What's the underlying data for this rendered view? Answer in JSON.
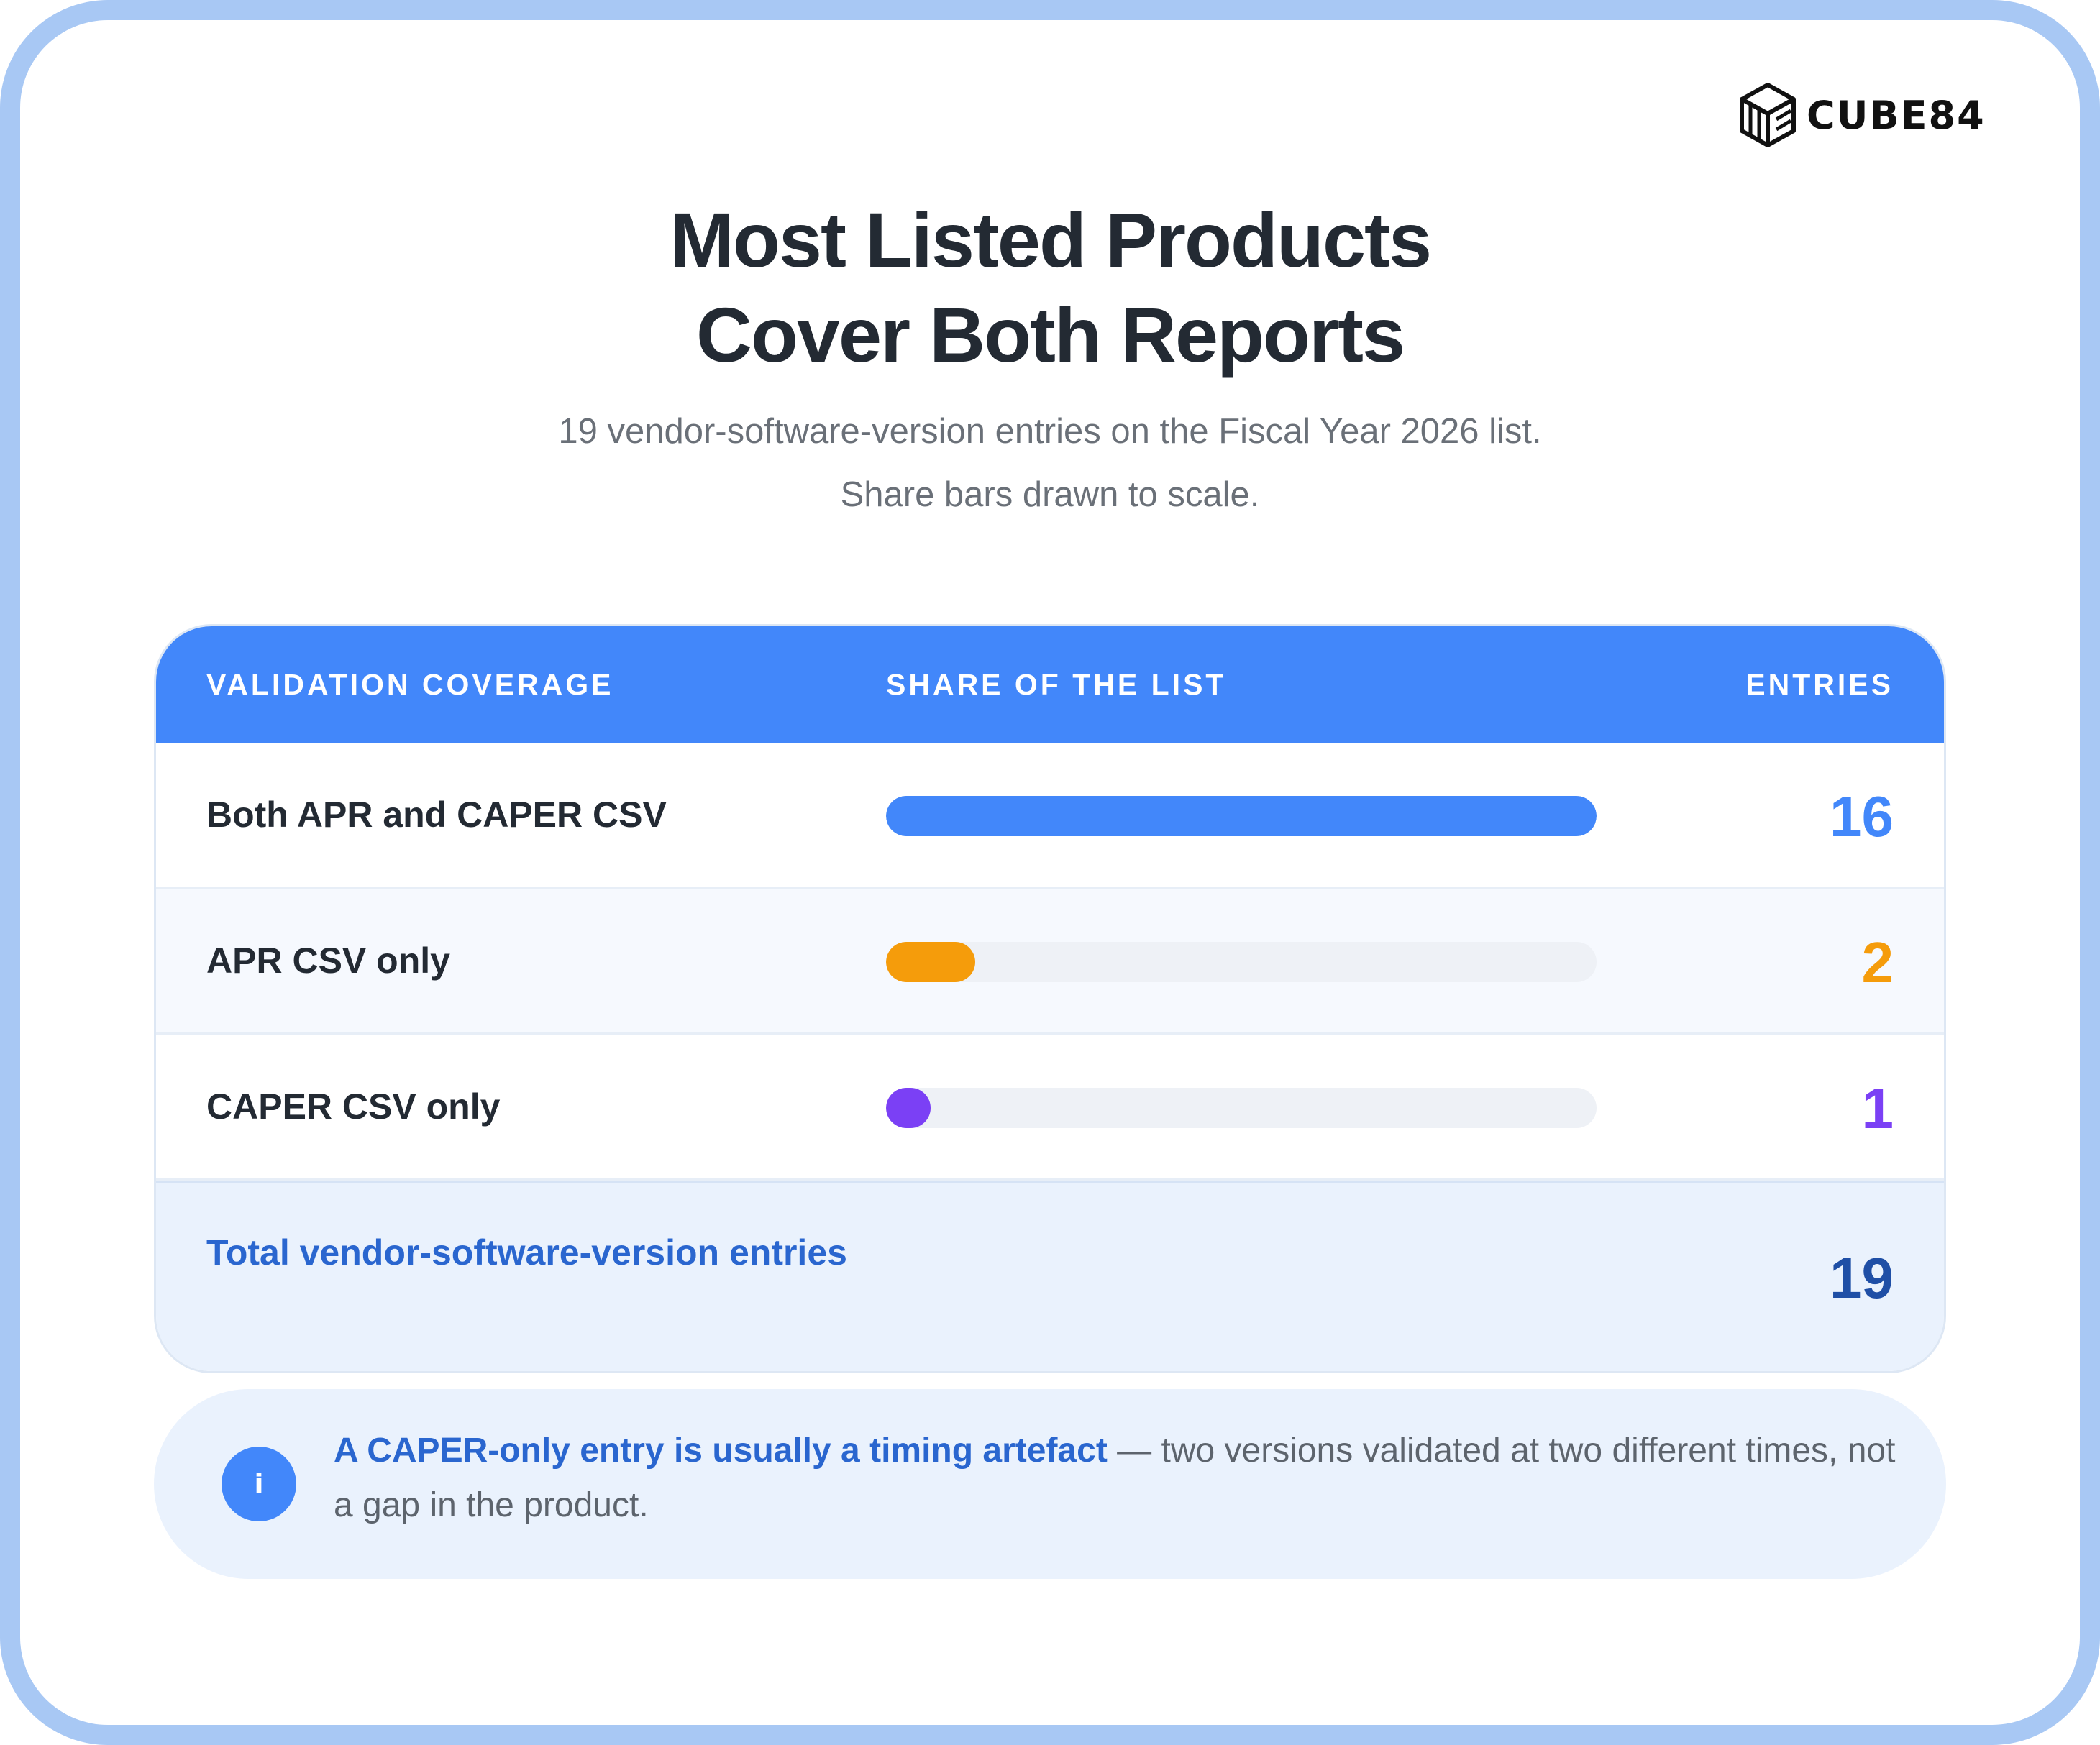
{
  "brand": {
    "logo_text": "CUBE84",
    "logo_icon": "cube-icon"
  },
  "header": {
    "title_line1": "Most Listed Products",
    "title_line2": "Cover Both Reports",
    "subtitle_line1": "19 vendor-software-version entries on the Fiscal Year 2026 list.",
    "subtitle_line2": "Share bars drawn to scale."
  },
  "table": {
    "columns": {
      "coverage": "VALIDATION COVERAGE",
      "share": "SHARE OF THE LIST",
      "entries": "ENTRIES"
    },
    "rows": [
      {
        "label": "Both APR and CAPER CSV",
        "value": "16",
        "color": "#4287fa"
      },
      {
        "label": "APR CSV only",
        "value": "2",
        "color": "#f59c0b"
      },
      {
        "label": "CAPER CSV only",
        "value": "1",
        "color": "#7b40f5"
      }
    ],
    "total": {
      "label": "Total vendor-software-version entries",
      "value": "19"
    },
    "track_color": "#eef1f6"
  },
  "chart_data": {
    "type": "bar",
    "orientation": "horizontal",
    "categories": [
      "Both APR and CAPER CSV",
      "APR CSV only",
      "CAPER CSV only"
    ],
    "values": [
      16,
      2,
      1
    ],
    "total": 19,
    "xlim": [
      0,
      16
    ],
    "colors": [
      "#4287fa",
      "#f59c0b",
      "#7b40f5"
    ],
    "title": "Most Listed Products Cover Both Reports",
    "xlabel": "",
    "ylabel": ""
  },
  "note": {
    "icon": "info-icon",
    "icon_glyph": "i",
    "strong": "A CAPER-only entry is usually a timing artefact",
    "rest": " — two versions validated at two different times, not a gap in the product."
  }
}
